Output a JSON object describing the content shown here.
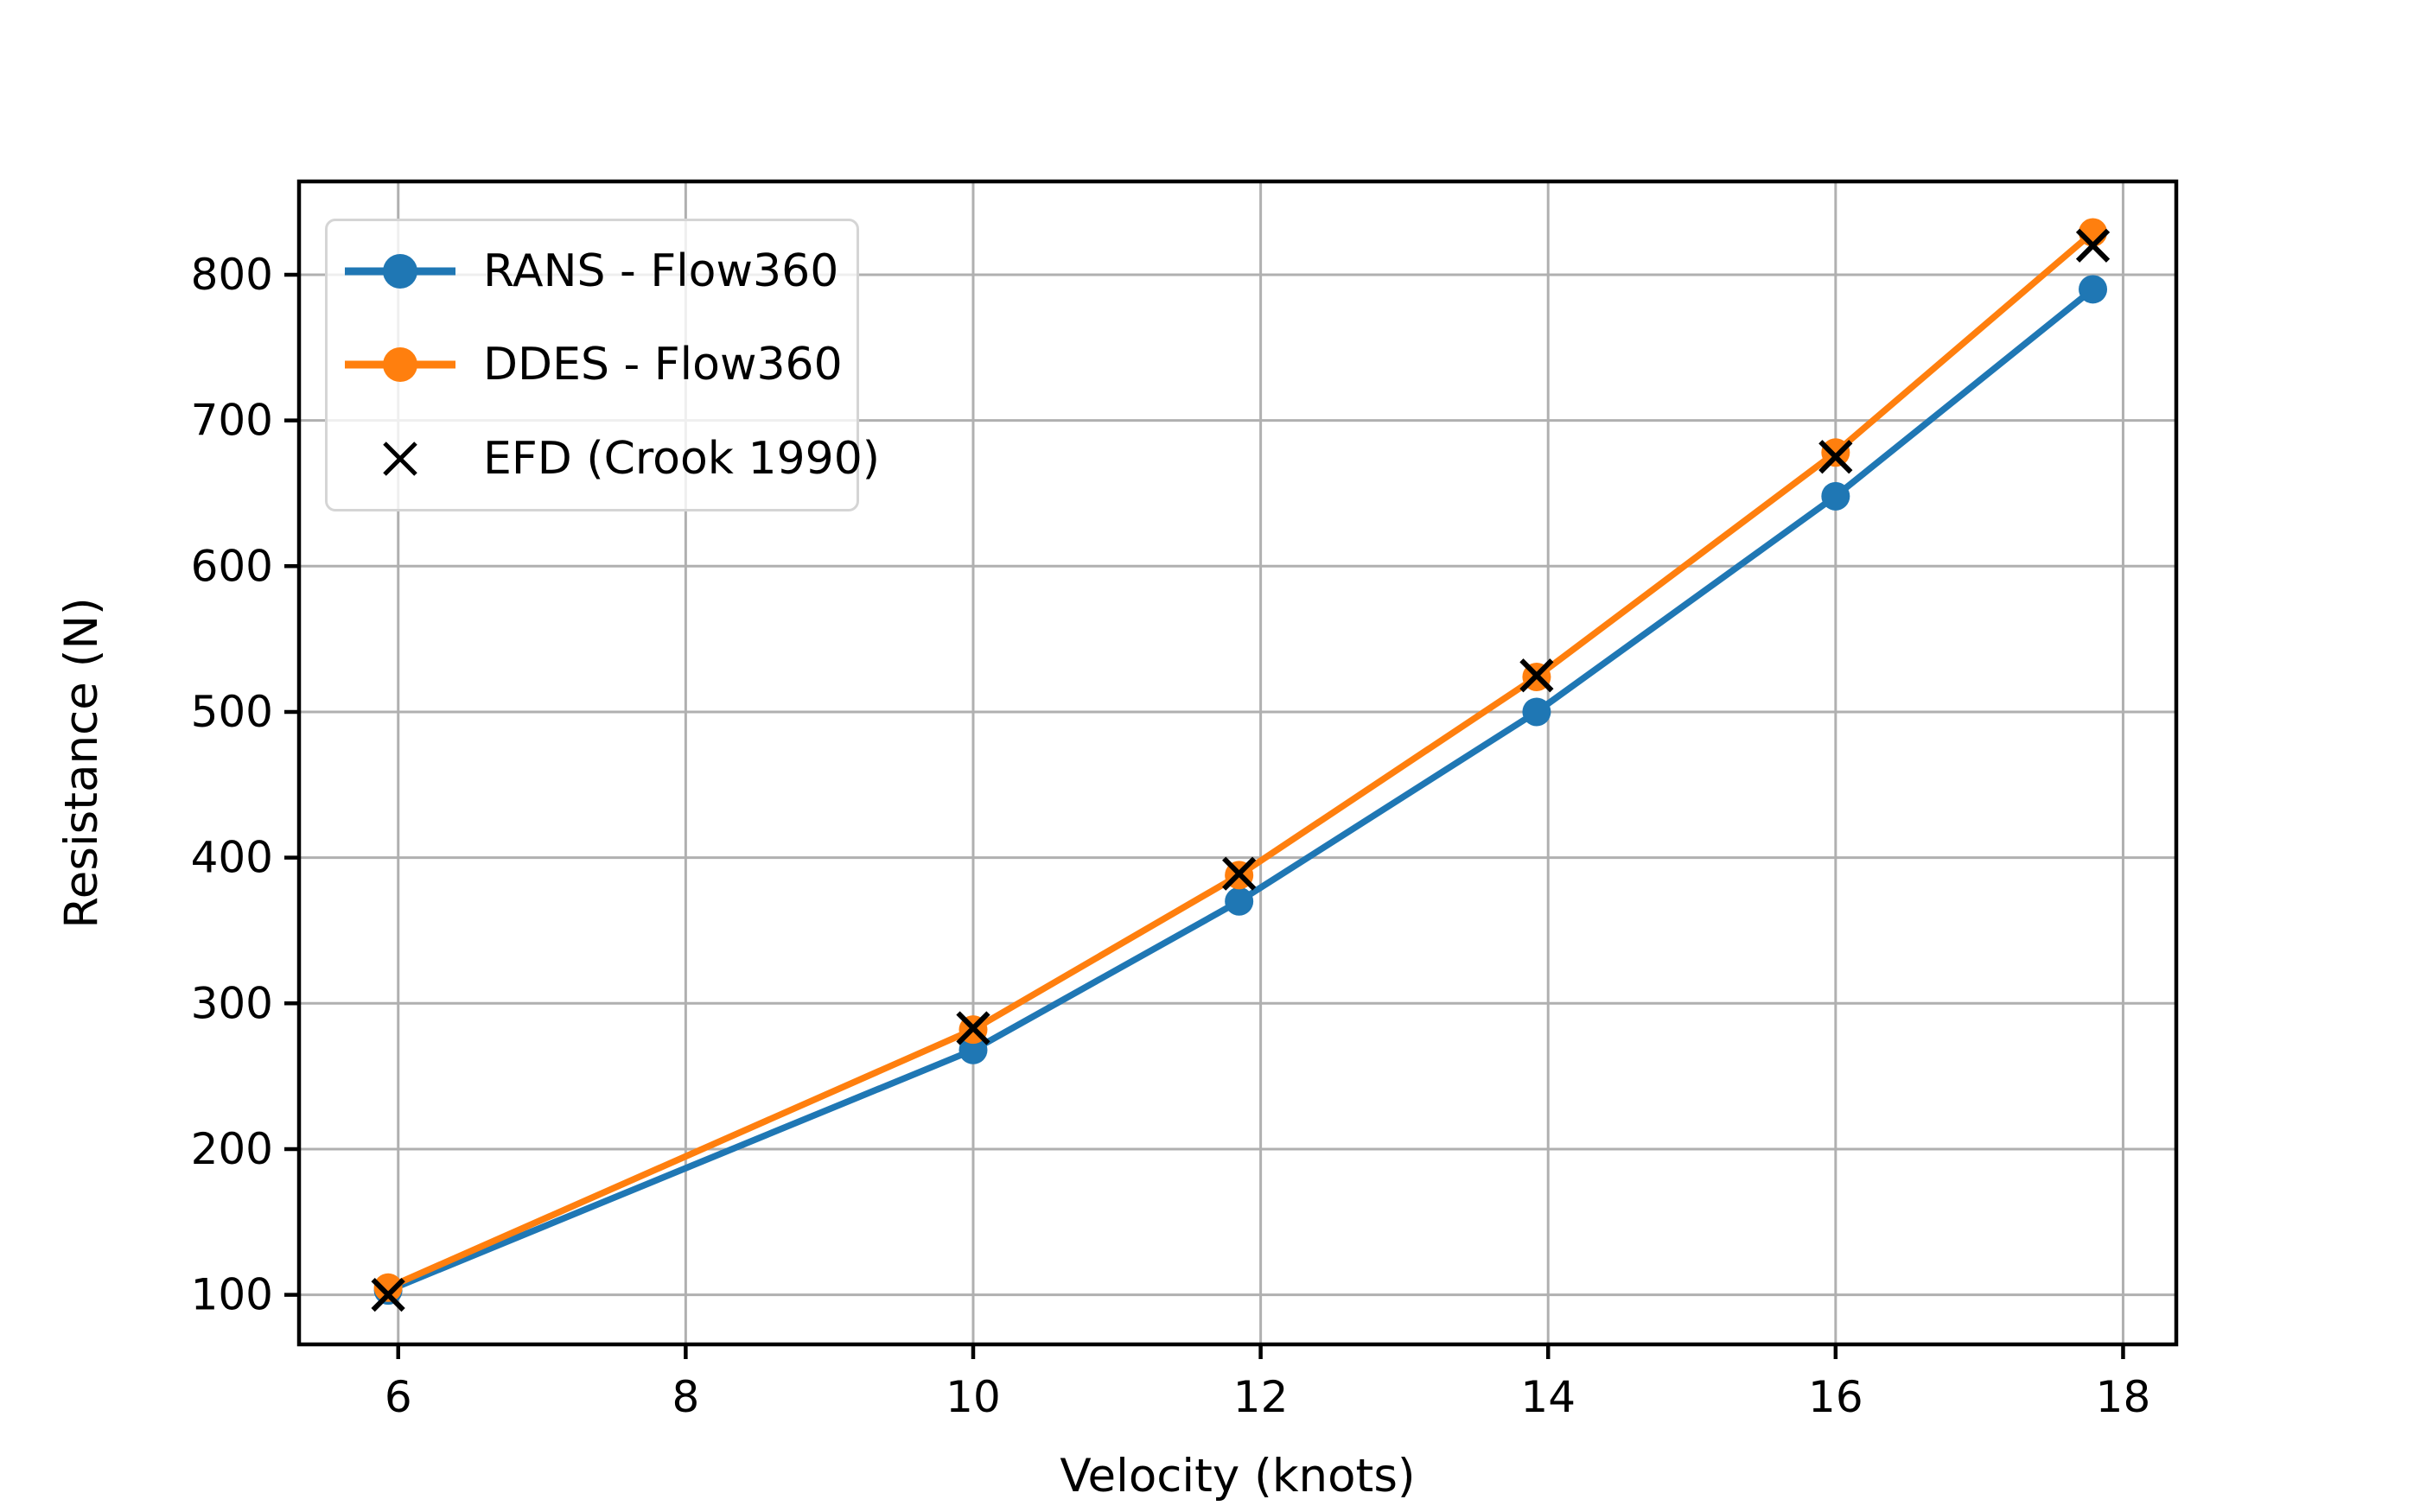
{
  "chart_data": {
    "type": "line",
    "title": "",
    "xlabel": "Velocity (knots)",
    "ylabel": "Resistance (N)",
    "x": [
      5.93,
      10.0,
      11.85,
      13.92,
      16.0,
      17.79
    ],
    "series": [
      {
        "name": "RANS - Flow360",
        "color": "#1f77b4",
        "marker": "circle",
        "line": true,
        "values": [
          103,
          268,
          370,
          500,
          648,
          790
        ]
      },
      {
        "name": "DDES - Flow360",
        "color": "#ff7f0e",
        "marker": "circle",
        "line": true,
        "values": [
          105,
          282,
          388,
          524,
          678,
          829
        ]
      },
      {
        "name": "EFD (Crook 1990)",
        "color": "#000000",
        "marker": "x",
        "line": false,
        "values": [
          100,
          283,
          389,
          525,
          675,
          820
        ]
      }
    ],
    "xticks": [
      6,
      8,
      10,
      12,
      14,
      16,
      18
    ],
    "yticks": [
      100,
      200,
      300,
      400,
      500,
      600,
      700,
      800
    ],
    "xlim": [
      5.31,
      18.37
    ],
    "ylim": [
      66,
      864
    ],
    "grid": true,
    "legend_position": "upper left",
    "colors": {
      "grid": "#b0b0b0",
      "spine": "#000000",
      "tick": "#000000",
      "text": "#000000",
      "legend_border": "#d5d5d5",
      "background": "#ffffff"
    }
  }
}
